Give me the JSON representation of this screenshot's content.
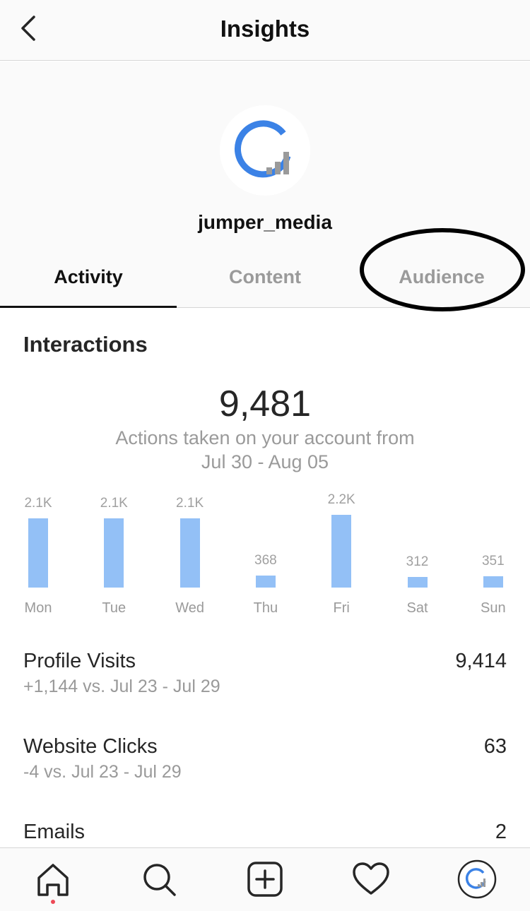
{
  "header": {
    "title": "Insights"
  },
  "profile": {
    "username": "jumper_media"
  },
  "tabs": [
    {
      "label": "Activity",
      "active": true
    },
    {
      "label": "Content",
      "active": false
    },
    {
      "label": "Audience",
      "active": false
    }
  ],
  "interactions": {
    "title": "Interactions",
    "total": "9,481",
    "description_line1": "Actions taken on your account from",
    "description_line2": "Jul 30 - Aug 05"
  },
  "chart_data": {
    "type": "bar",
    "categories": [
      "Mon",
      "Tue",
      "Wed",
      "Thu",
      "Fri",
      "Sat",
      "Sun"
    ],
    "values": [
      2100,
      2100,
      2100,
      368,
      2200,
      312,
      351
    ],
    "value_labels": [
      "2.1K",
      "2.1K",
      "2.1K",
      "368",
      "2.2K",
      "312",
      "351"
    ],
    "title": "",
    "xlabel": "",
    "ylabel": "",
    "ylim": [
      0,
      2200
    ],
    "grid": false,
    "bar_color": "#93c0f6"
  },
  "stats": [
    {
      "label": "Profile Visits",
      "value": "9,414",
      "comparison": "+1,144 vs. Jul 23 - Jul 29"
    },
    {
      "label": "Website Clicks",
      "value": "63",
      "comparison": "-4 vs. Jul 23 - Jul 29"
    },
    {
      "label": "Emails",
      "value": "2",
      "comparison": ""
    }
  ],
  "bottom_nav": [
    {
      "icon": "home-icon",
      "active": true
    },
    {
      "icon": "search-icon",
      "active": false
    },
    {
      "icon": "add-post-icon",
      "active": false
    },
    {
      "icon": "heart-icon",
      "active": false
    },
    {
      "icon": "profile-avatar-icon",
      "active": false
    }
  ],
  "colors": {
    "accent_blue": "#3b82e6",
    "bar_blue": "#93c0f6",
    "muted_text": "#9a9a9a",
    "notification_dot": "#ed4956"
  }
}
